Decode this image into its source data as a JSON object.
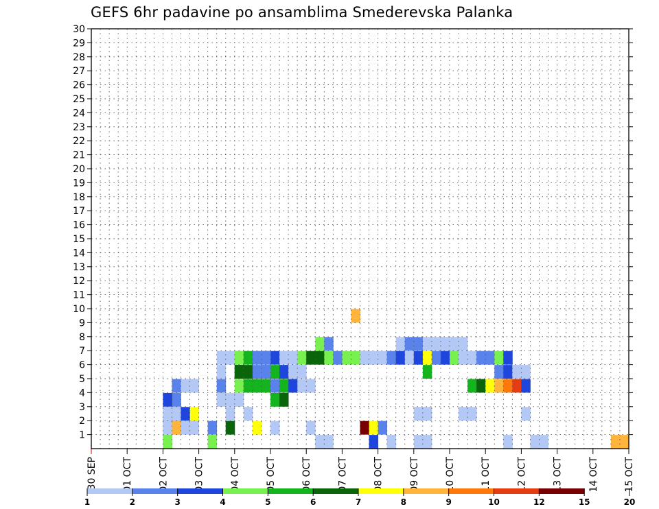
{
  "chart_data": {
    "type": "heatmap",
    "title": "GEFS 6hr padavine po ansamblima Smederevska Palanka",
    "xlabel": "",
    "ylabel": "",
    "x_tick_labels": [
      "30 SEP",
      "01 OCT",
      "02 OCT",
      "03 OCT",
      "04 OCT",
      "05 OCT",
      "06 OCT",
      "07 OCT",
      "08 OCT",
      "09 OCT",
      "10 OCT",
      "11 OCT",
      "12 OCT",
      "13 OCT",
      "14 OCT",
      "15 OCT"
    ],
    "x_unit": "6h steps from 30 SEP 00Z",
    "xlim": [
      0,
      60
    ],
    "y_tick_labels": [
      "1",
      "2",
      "3",
      "4",
      "5",
      "6",
      "7",
      "8",
      "9",
      "10",
      "11",
      "12",
      "13",
      "14",
      "15",
      "16",
      "17",
      "18",
      "19",
      "20",
      "21",
      "22",
      "23",
      "24",
      "25",
      "26",
      "27",
      "28",
      "29",
      "30"
    ],
    "ylim": [
      0,
      30
    ],
    "grid": true,
    "colorbar": {
      "labels": [
        "1",
        "2",
        "3",
        "4",
        "5",
        "6",
        "7",
        "8",
        "9",
        "10",
        "12",
        "15",
        "20"
      ],
      "colors": [
        "#b4c8f5",
        "#5a82eb",
        "#1e46dc",
        "#78f050",
        "#14b41e",
        "#0a640a",
        "#ffff0a",
        "#ffb43c",
        "#ff780a",
        "#e63c14",
        "#780000"
      ]
    },
    "cells": [
      [
        0,
        8,
        0
      ],
      [
        1,
        8,
        2
      ],
      [
        1,
        9,
        3
      ],
      [
        2,
        8,
        3
      ],
      [
        3,
        8,
        0
      ],
      [
        3,
        9,
        1
      ],
      [
        5,
        9,
        2
      ],
      [
        4,
        8,
        1
      ],
      [
        3,
        10,
        4
      ],
      [
        4,
        11,
        1
      ],
      [
        0,
        8,
        1
      ],
      [
        0,
        11,
        1
      ],
      [
        7,
        9,
        1
      ],
      [
        7,
        10,
        1
      ],
      [
        7,
        58,
        0
      ],
      [
        7,
        59,
        0
      ],
      [
        0,
        8,
        2
      ],
      [
        0,
        9,
        2
      ],
      [
        0,
        10,
        1
      ],
      [
        2,
        10,
        2
      ],
      [
        6,
        11,
        2
      ],
      [
        1,
        13,
        1
      ],
      [
        3,
        13,
        0
      ],
      [
        0,
        14,
        3
      ],
      [
        0,
        15,
        2
      ],
      [
        5,
        15,
        1
      ],
      [
        0,
        24,
        1
      ],
      [
        0,
        25,
        0
      ],
      [
        0,
        26,
        0
      ],
      [
        0,
        46,
        0
      ],
      [
        0,
        15,
        3
      ],
      [
        0,
        16,
        3
      ],
      [
        0,
        17,
        2
      ],
      [
        6,
        18,
        1
      ],
      [
        6,
        19,
        4
      ],
      [
        4,
        20,
        3
      ],
      [
        5,
        21,
        3
      ],
      [
        2,
        30,
        6
      ],
      [
        2,
        31,
        0
      ],
      [
        0,
        41,
        2
      ],
      [
        0,
        42,
        2
      ],
      [
        0,
        48,
        2
      ],
      [
        1,
        9,
        4
      ],
      [
        0,
        10,
        4
      ],
      [
        0,
        11,
        4
      ],
      [
        1,
        14,
        4
      ],
      [
        0,
        20,
        1
      ],
      [
        0,
        36,
        0
      ],
      [
        0,
        37,
        0
      ],
      [
        7,
        29,
        9
      ],
      [
        10,
        30,
        1
      ],
      [
        6,
        31,
        1
      ],
      [
        1,
        32,
        1
      ],
      [
        0,
        33,
        0
      ],
      [
        0,
        49,
        0
      ],
      [
        0,
        50,
        0
      ],
      [
        0,
        14,
        5
      ],
      [
        2,
        16,
        5
      ],
      [
        1,
        19,
        5
      ],
      [
        4,
        20,
        5
      ],
      [
        7,
        21,
        5
      ],
      [
        1,
        22,
        5
      ],
      [
        0,
        23,
        5
      ],
      [
        0,
        36,
        2
      ],
      [
        0,
        37,
        2
      ],
      [
        2,
        40,
        6
      ],
      [
        3,
        41,
        6
      ],
      [
        0,
        42,
        6
      ],
      [
        1,
        45,
        5
      ],
      [
        2,
        46,
        5
      ],
      [
        0,
        47,
        5
      ],
      [
        0,
        14,
        6
      ],
      [
        1,
        16,
        6
      ],
      [
        0,
        18,
        6
      ],
      [
        2,
        19,
        6
      ],
      [
        2,
        20,
        6
      ],
      [
        0,
        21,
        6
      ],
      [
        0,
        22,
        6
      ],
      [
        3,
        23,
        6
      ],
      [
        5,
        24,
        6
      ],
      [
        5,
        25,
        6
      ],
      [
        3,
        26,
        6
      ],
      [
        1,
        27,
        6
      ],
      [
        3,
        28,
        6
      ],
      [
        3,
        29,
        6
      ],
      [
        0,
        30,
        6
      ],
      [
        0,
        31,
        6
      ],
      [
        0,
        32,
        6
      ],
      [
        1,
        33,
        6
      ],
      [
        2,
        34,
        6
      ],
      [
        0,
        35,
        6
      ],
      [
        2,
        36,
        6
      ],
      [
        6,
        37,
        6
      ],
      [
        1,
        38,
        6
      ],
      [
        2,
        39,
        6
      ],
      [
        3,
        40,
        6
      ],
      [
        0,
        41,
        6
      ],
      [
        0,
        42,
        6
      ],
      [
        1,
        43,
        6
      ],
      [
        1,
        44,
        6
      ],
      [
        3,
        45,
        6
      ],
      [
        2,
        46,
        6
      ],
      [
        0,
        15,
        6
      ],
      [
        3,
        16,
        6
      ],
      [
        4,
        17,
        6
      ],
      [
        1,
        18,
        6
      ],
      [
        1,
        19,
        6
      ],
      [
        3,
        25,
        7
      ],
      [
        1,
        26,
        7
      ],
      [
        0,
        34,
        7
      ],
      [
        1,
        35,
        7
      ],
      [
        1,
        36,
        7
      ],
      [
        0,
        37,
        7
      ],
      [
        0,
        38,
        7
      ],
      [
        0,
        39,
        7
      ],
      [
        0,
        40,
        7
      ],
      [
        0,
        41,
        7
      ],
      [
        5,
        16,
        5
      ],
      [
        5,
        17,
        5
      ],
      [
        1,
        18,
        5
      ],
      [
        1,
        19,
        5
      ],
      [
        2,
        21,
        5
      ],
      [
        0,
        22,
        5
      ],
      [
        4,
        37,
        5
      ],
      [
        3,
        16,
        4
      ],
      [
        4,
        17,
        4
      ],
      [
        4,
        18,
        4
      ],
      [
        4,
        19,
        4
      ],
      [
        1,
        20,
        4
      ],
      [
        4,
        21,
        4
      ],
      [
        2,
        22,
        4
      ],
      [
        0,
        23,
        4
      ],
      [
        0,
        24,
        4
      ],
      [
        4,
        42,
        4
      ],
      [
        5,
        43,
        4
      ],
      [
        6,
        44,
        4
      ],
      [
        7,
        45,
        4
      ],
      [
        8,
        46,
        4
      ],
      [
        9,
        47,
        4
      ],
      [
        2,
        48,
        4
      ],
      [
        0,
        48,
        5
      ],
      [
        0,
        47,
        5
      ]
    ]
  },
  "frame": {
    "background": "#ffffff"
  }
}
